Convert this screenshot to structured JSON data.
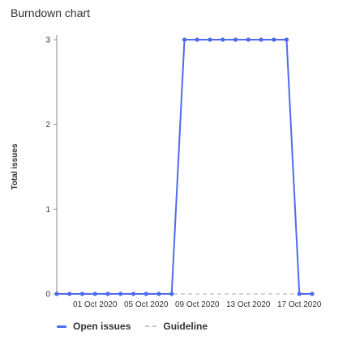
{
  "widget": {
    "title": "Burndown chart"
  },
  "colors": {
    "open_issues": "#4f6bed",
    "guideline": "#c8c6c4",
    "axis": "#8a8886"
  },
  "chart_data": {
    "type": "line",
    "ylabel": "Total issues",
    "xlabel": "",
    "ylim": [
      0,
      3
    ],
    "yticks": [
      "0",
      "1",
      "2",
      "3"
    ],
    "x_tick_labels": [
      "01 Oct 2020",
      "05 Oct 2020",
      "09 Oct 2020",
      "13 Oct 2020",
      "17 Oct 2020"
    ],
    "x_tick_days": [
      1,
      5,
      9,
      13,
      17
    ],
    "x": [
      "28 Sep 2020",
      "29 Sep 2020",
      "30 Sep 2020",
      "01 Oct 2020",
      "02 Oct 2020",
      "03 Oct 2020",
      "04 Oct 2020",
      "05 Oct 2020",
      "06 Oct 2020",
      "07 Oct 2020",
      "08 Oct 2020",
      "09 Oct 2020",
      "10 Oct 2020",
      "11 Oct 2020",
      "12 Oct 2020",
      "13 Oct 2020",
      "14 Oct 2020",
      "15 Oct 2020",
      "16 Oct 2020",
      "17 Oct 2020",
      "18 Oct 2020"
    ],
    "x_days": [
      -2,
      -1,
      0,
      1,
      2,
      3,
      4,
      5,
      6,
      7,
      8,
      9,
      10,
      11,
      12,
      13,
      14,
      15,
      16,
      17,
      18
    ],
    "series": [
      {
        "name": "Open issues",
        "values": [
          0,
          0,
          0,
          0,
          0,
          0,
          0,
          0,
          0,
          0,
          3,
          3,
          3,
          3,
          3,
          3,
          3,
          3,
          3,
          0,
          0
        ]
      },
      {
        "name": "Guideline",
        "values": [
          0,
          0,
          0,
          0,
          0,
          0,
          0,
          0,
          0,
          0,
          0,
          0,
          0,
          0,
          0,
          0,
          0,
          0,
          0,
          0,
          0
        ]
      }
    ],
    "legend_position": "bottom-left",
    "grid": false
  },
  "legend": {
    "items": [
      {
        "label": "Open issues"
      },
      {
        "label": "Guideline"
      }
    ]
  }
}
